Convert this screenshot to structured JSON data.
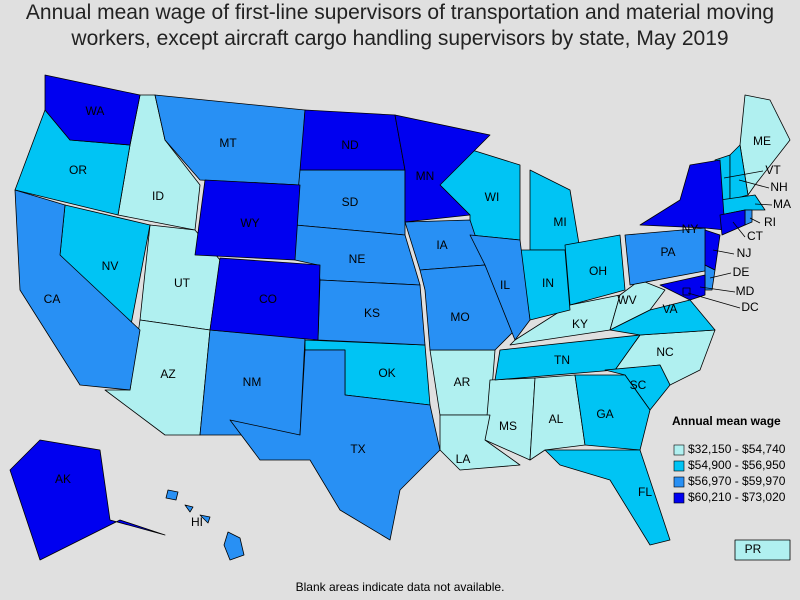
{
  "title": "Annual mean wage of first-line supervisors of transportation and material moving workers, except aircraft cargo handling supervisors by state, May 2019",
  "legend": {
    "title": "Annual mean wage",
    "items": [
      {
        "label": "$32,150 - $54,740",
        "color": "#b0f0f0",
        "states": [
          "ID",
          "UT",
          "AZ",
          "AR",
          "MS",
          "AL",
          "LA",
          "KY",
          "WV",
          "NC",
          "ME",
          "PR"
        ]
      },
      {
        "label": "$54,900 - $56,950",
        "color": "#00c4f4",
        "states": [
          "OR",
          "NV",
          "WI",
          "MI",
          "IN",
          "OH",
          "OK",
          "TN",
          "SC",
          "GA",
          "FL",
          "VA",
          "VT",
          "NH",
          "MA"
        ]
      },
      {
        "label": "$56,970 - $59,970",
        "color": "#2890f4",
        "states": [
          "MT",
          "SD",
          "NE",
          "KS",
          "IA",
          "MO",
          "IL",
          "NM",
          "TX",
          "CA",
          "PA",
          "HI",
          "RI",
          "DE"
        ]
      },
      {
        "label": "$60,210 - $73,020",
        "color": "#0000f0",
        "states": [
          "WA",
          "ND",
          "MN",
          "WY",
          "CO",
          "AK",
          "NY",
          "NJ",
          "CT",
          "MD",
          "DC"
        ]
      }
    ]
  },
  "footnote": "Blank areas indicate data not available."
}
